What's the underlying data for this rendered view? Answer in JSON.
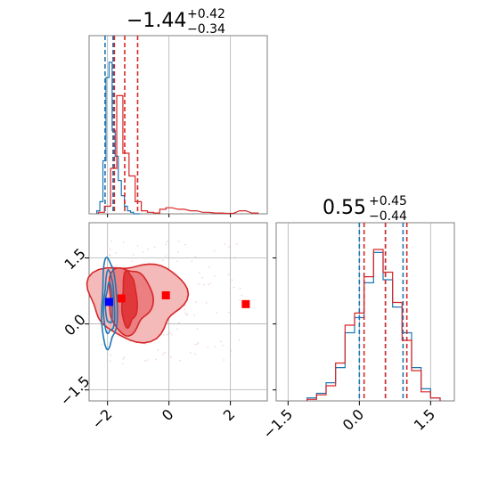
{
  "chart_data": [
    {
      "type": "histogram",
      "panel": "top-left",
      "title": {
        "value": "−1.44",
        "upper": "+0.42",
        "lower": "−0.34"
      },
      "xlim": [
        -2.6,
        3.2
      ],
      "grid": true,
      "series": [
        {
          "name": "",
          "color": "#1f77b4",
          "bins": [
            -2.3,
            -2.2,
            -2.1,
            -2.0,
            -1.9,
            -1.8,
            -1.7,
            -1.6,
            -1.5,
            -1.4,
            -1.3,
            -1.2,
            -1.1,
            -1.0
          ],
          "values": [
            0.02,
            0.08,
            0.35,
            0.9,
            1.0,
            0.55,
            0.38,
            0.22,
            0.12,
            0.05,
            0.02,
            0.01,
            0.0,
            0.0
          ],
          "quantiles": [
            -2.08,
            -1.82,
            -1.78
          ]
        },
        {
          "name": "",
          "color": "#d62728",
          "bins": [
            -2.2,
            -2.0,
            -1.8,
            -1.6,
            -1.4,
            -1.2,
            -1.0,
            -0.8,
            -0.6,
            -0.4,
            -0.2,
            0.0,
            0.4,
            0.8,
            1.2,
            1.6,
            2.0,
            2.4,
            2.8
          ],
          "values": [
            0.01,
            0.05,
            0.3,
            0.78,
            0.4,
            0.25,
            0.08,
            0.02,
            0.01,
            0.005,
            0.03,
            0.04,
            0.03,
            0.02,
            0.01,
            0.005,
            0.003,
            0.02,
            0.005
          ],
          "quantiles": [
            -1.78,
            -1.44,
            -1.02
          ]
        }
      ],
      "y_hidden": true
    },
    {
      "type": "contour",
      "panel": "bottom-left",
      "xlim": [
        -2.6,
        3.2
      ],
      "ylim": [
        -1.75,
        2.3
      ],
      "xticks": [
        -2,
        0,
        2
      ],
      "xticklabels": [
        "−2",
        "0",
        "2"
      ],
      "yticks": [
        -1.5,
        0.0,
        1.5
      ],
      "yticklabels": [
        "−1.5",
        "0.0",
        "1.5"
      ],
      "grid": true,
      "markers": [
        {
          "x": -1.95,
          "y": 0.5,
          "color": "#0000ff"
        },
        {
          "x": -1.55,
          "y": 0.58,
          "color": "#ff0000"
        },
        {
          "x": -0.1,
          "y": 0.65,
          "color": "#ff0000"
        },
        {
          "x": 2.5,
          "y": 0.45,
          "color": "#ff0000"
        }
      ],
      "series": [
        {
          "name": "",
          "color": "#1f77b4",
          "center": [
            -1.95,
            0.5
          ],
          "spread": [
            0.25,
            0.8
          ]
        },
        {
          "name": "",
          "color": "#d62728",
          "center": [
            -1.3,
            0.55
          ],
          "spread": [
            1.0,
            0.75
          ]
        }
      ]
    },
    {
      "type": "histogram",
      "panel": "bottom-right",
      "title": {
        "value": "0.55",
        "upper": "+0.45",
        "lower": "−0.44"
      },
      "xlim": [
        -1.75,
        2.0
      ],
      "xticks": [
        -1.5,
        0.0,
        1.5
      ],
      "xticklabels": [
        "−1.5",
        "0.0",
        "1.5"
      ],
      "grid": true,
      "series": [
        {
          "name": "",
          "color": "#1f77b4",
          "bins": [
            -1.0,
            -0.8,
            -0.6,
            -0.4,
            -0.2,
            0.0,
            0.2,
            0.4,
            0.6,
            0.8,
            1.0,
            1.2,
            1.4,
            1.6
          ],
          "values": [
            0.02,
            0.05,
            0.12,
            0.22,
            0.45,
            0.55,
            0.78,
            0.98,
            0.8,
            0.62,
            0.45,
            0.22,
            0.08,
            0.02
          ],
          "quantiles": [
            0.0,
            0.55,
            0.92
          ]
        },
        {
          "name": "",
          "color": "#d62728",
          "bins": [
            -1.0,
            -0.8,
            -0.6,
            -0.4,
            -0.2,
            0.0,
            0.2,
            0.4,
            0.6,
            0.8,
            1.0,
            1.2,
            1.4,
            1.6
          ],
          "values": [
            0.01,
            0.04,
            0.1,
            0.25,
            0.5,
            0.58,
            0.82,
            1.0,
            0.85,
            0.65,
            0.4,
            0.2,
            0.06,
            0.02
          ],
          "quantiles": [
            0.1,
            0.55,
            1.0
          ]
        }
      ],
      "y_hidden": true
    }
  ]
}
